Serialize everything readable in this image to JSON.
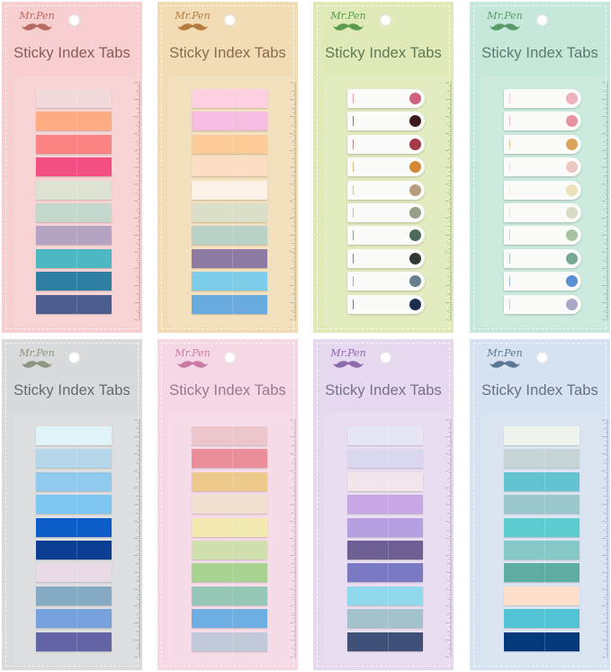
{
  "product": {
    "brand": "Mr.Pen",
    "title": "Sticky Index Tabs"
  },
  "cards": [
    {
      "bg": "#f7cfd0",
      "accent": "#b76a5f",
      "text": "#8a5a57",
      "style": "solid",
      "tabs": [
        "#f2d9dc",
        "#fdab80",
        "#fb8282",
        "#f34f82",
        "#dde3d3",
        "#c4d8cd",
        "#b5a3c4",
        "#4db8c1",
        "#2f7fa3",
        "#4a5d8c"
      ]
    },
    {
      "bg": "#f2dcb6",
      "accent": "#b77a3e",
      "text": "#8a6a4a",
      "style": "solid",
      "tabs": [
        "#fcd0e0",
        "#f7bce2",
        "#fccb96",
        "#fdddc4",
        "#fbf1e6",
        "#dcdfc8",
        "#b9d2c8",
        "#8d7aa3",
        "#7dcde9",
        "#69aadf"
      ]
    },
    {
      "bg": "#dfeab8",
      "accent": "#5a9b4c",
      "text": "#5f7a52",
      "style": "white",
      "tabs": [
        "#d06080",
        "#3d1a1e",
        "#a43846",
        "#d48a35",
        "#b69c7c",
        "#959e87",
        "#4c6a58",
        "#2f3a33",
        "#677f8c",
        "#1c2e4d"
      ]
    },
    {
      "bg": "#c6e8da",
      "accent": "#5a9b6c",
      "text": "#5c7a6c",
      "style": "white",
      "tabs": [
        "#eeb0bd",
        "#e8929e",
        "#dba45a",
        "#ecc8c0",
        "#ece1b8",
        "#d6dcc6",
        "#a8c3a2",
        "#77a892",
        "#5a8fd6",
        "#a9a8c8"
      ]
    },
    {
      "bg": "#d9dadb",
      "accent": "#8a9680",
      "text": "#666a6c",
      "style": "solid",
      "tabs": [
        "#dff3f8",
        "#b6d7ea",
        "#8fcaee",
        "#7cc6f1",
        "#0d5dc9",
        "#0c3e93",
        "#ead9e6",
        "#86aac4",
        "#76a1dc",
        "#6264a6"
      ]
    },
    {
      "bg": "#f6d7e6",
      "accent": "#c97aa5",
      "text": "#9a7889",
      "style": "solid",
      "tabs": [
        "#ecc6cb",
        "#e98d98",
        "#eec98c",
        "#f1dfd0",
        "#f2eab0",
        "#cfe0ae",
        "#a7d390",
        "#95c7b7",
        "#6eafe3",
        "#c0cad8"
      ]
    },
    {
      "bg": "#e6d9ef",
      "accent": "#8c6aad",
      "text": "#77708a",
      "style": "solid",
      "tabs": [
        "#e6e5f3",
        "#d9d8ee",
        "#f2e6ec",
        "#c8a7e4",
        "#b5a1e2",
        "#6d5f94",
        "#7a79c4",
        "#90d9ec",
        "#a4c2cc",
        "#3f5179"
      ]
    },
    {
      "bg": "#d6e2f1",
      "accent": "#5a7896",
      "text": "#667080",
      "style": "solid",
      "tabs": [
        "#eef3ee",
        "#c7d4d6",
        "#62c3d2",
        "#9ac8cc",
        "#5dced0",
        "#86c8c8",
        "#5faca3",
        "#fde0cc",
        "#52c4d3",
        "#043a79"
      ]
    }
  ]
}
